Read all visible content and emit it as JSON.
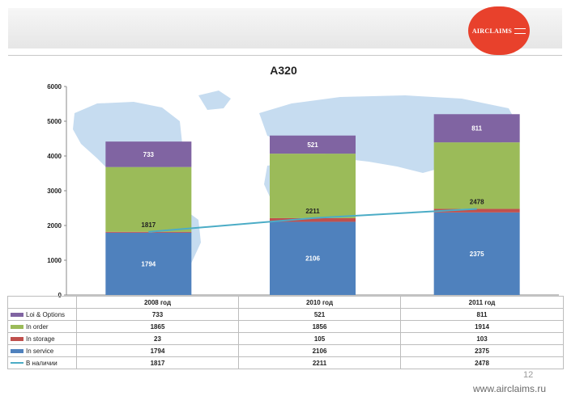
{
  "brand": {
    "logo_text": "AIRCLAIMS",
    "color": "#e8412c"
  },
  "page_number": "12",
  "footer_url": "www.airclaims.ru",
  "colors": {
    "loi": "#8064a2",
    "order": "#9bbb59",
    "storage": "#c0504d",
    "service": "#4f81bd",
    "line": "#4bacc6"
  },
  "chart_data": {
    "type": "bar",
    "stacked": true,
    "title": "A320",
    "categories": [
      "2008 год",
      "2010 год",
      "2011 год"
    ],
    "ylim": [
      0,
      6000
    ],
    "yticks": [
      "0",
      "1000",
      "2000",
      "3000",
      "4000",
      "5000",
      "6000"
    ],
    "grid": false,
    "legend": "table-below",
    "series": [
      {
        "name": "In service",
        "kind": "bar",
        "values": [
          1794,
          2106,
          2375
        ],
        "labels": [
          "1794",
          "2106",
          "2375"
        ]
      },
      {
        "name": "In storage",
        "kind": "bar",
        "values": [
          23,
          105,
          103
        ],
        "labels": [
          "23",
          "105",
          "103"
        ]
      },
      {
        "name": "In order",
        "kind": "bar",
        "values": [
          1865,
          1856,
          1914
        ],
        "labels": [
          "1865",
          "1856",
          "1914"
        ]
      },
      {
        "name": "Loi & Options",
        "kind": "bar",
        "values": [
          733,
          521,
          811
        ],
        "labels": [
          "733",
          "521",
          "811"
        ]
      },
      {
        "name": "В наличии",
        "kind": "line",
        "values": [
          1817,
          2211,
          2478
        ],
        "labels": [
          "1817",
          "2211",
          "2478"
        ]
      }
    ]
  },
  "table": {
    "rows": [
      {
        "label": "Loi & Options",
        "key": "loi",
        "type": "box",
        "values": [
          "733",
          "521",
          "811"
        ]
      },
      {
        "label": "In order",
        "key": "order",
        "type": "box",
        "values": [
          "1865",
          "1856",
          "1914"
        ]
      },
      {
        "label": "In storage",
        "key": "storage",
        "type": "box",
        "values": [
          "23",
          "105",
          "103"
        ]
      },
      {
        "label": "In service",
        "key": "service",
        "type": "box",
        "values": [
          "1794",
          "2106",
          "2375"
        ]
      },
      {
        "label": "В наличии",
        "key": "line",
        "type": "line",
        "values": [
          "1817",
          "2211",
          "2478"
        ]
      }
    ]
  }
}
